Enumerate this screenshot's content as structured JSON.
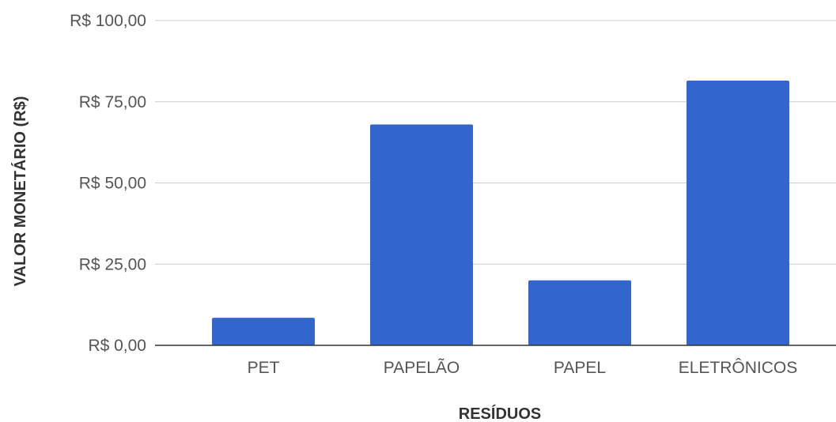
{
  "chart_data": {
    "type": "bar",
    "categories": [
      "PET",
      "PAPELÃO",
      "PAPEL",
      "ELETRÔNICOS"
    ],
    "values": [
      8.5,
      68,
      20,
      81.5
    ],
    "series": [
      {
        "values": [
          8.5,
          68,
          20,
          81.5
        ],
        "color": "#3366cc"
      }
    ],
    "title": "",
    "xlabel": "RESÍDUOS",
    "ylabel": "VALOR MONETÁRIO (R$)",
    "ylim": [
      0,
      100
    ],
    "yticks": [
      0,
      25,
      50,
      75,
      100
    ],
    "ytick_labels": [
      "R$ 0,00",
      "R$ 25,00",
      "R$ 50,00",
      "R$ 75,00",
      "R$ 100,00"
    ],
    "grid": true,
    "legend": "none",
    "colors": {
      "bar": "#3366cc",
      "grid": "#cccccc",
      "baseline": "#333333",
      "tick_text": "#555555",
      "axis_title": "#333333"
    }
  }
}
